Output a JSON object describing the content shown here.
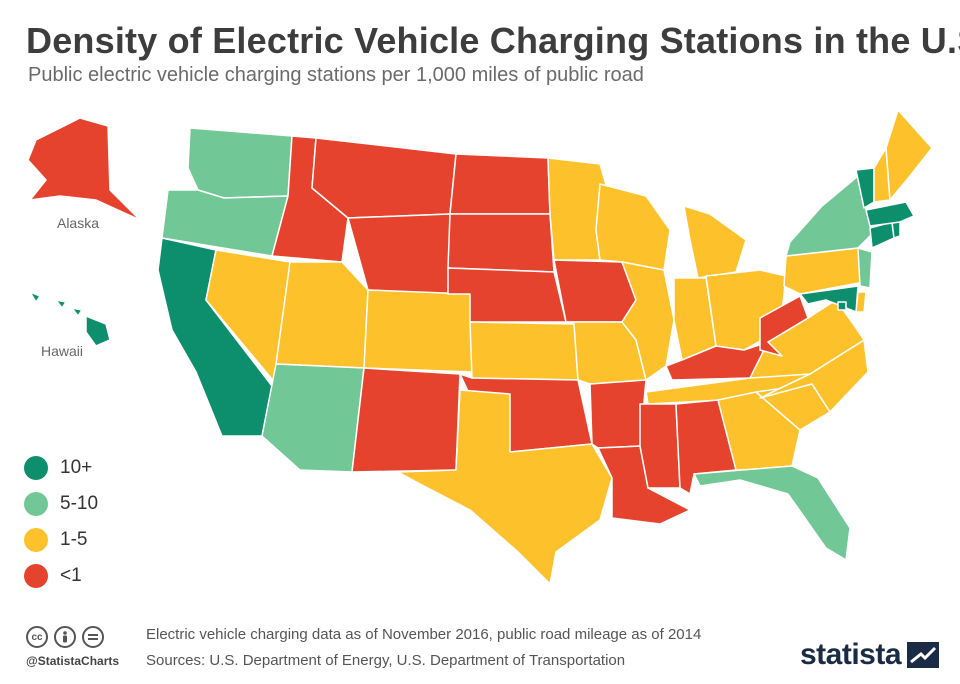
{
  "title": "Density of Electric Vehicle Charging Stations in the U.S.",
  "subtitle": "Public electric vehicle charging stations per 1,000 miles of public road",
  "labels": {
    "alaska": "Alaska",
    "hawaii": "Hawaii"
  },
  "legend": [
    {
      "key": "high",
      "label": "10+",
      "color": "#0d8f6e"
    },
    {
      "key": "mid",
      "label": "5-10",
      "color": "#72c796"
    },
    {
      "key": "low",
      "label": "1-5",
      "color": "#fdc12b"
    },
    {
      "key": "none",
      "label": "<1",
      "color": "#e5432e"
    }
  ],
  "states": {
    "WA": "mid",
    "OR": "mid",
    "CA": "high",
    "NV": "low",
    "ID": "none",
    "MT": "none",
    "WY": "none",
    "UT": "low",
    "AZ": "mid",
    "CO": "low",
    "NM": "none",
    "ND": "none",
    "SD": "none",
    "NE": "none",
    "KS": "low",
    "OK": "none",
    "TX": "low",
    "MN": "low",
    "IA": "none",
    "MO": "low",
    "AR": "none",
    "LA": "none",
    "WI": "low",
    "IL": "low",
    "MI": "low",
    "IN": "low",
    "OH": "low",
    "KY": "none",
    "TN": "low",
    "MS": "none",
    "AL": "none",
    "GA": "low",
    "FL": "mid",
    "SC": "low",
    "NC": "low",
    "VA": "low",
    "WV": "none",
    "PA": "low",
    "NY": "mid",
    "NJ": "mid",
    "DE": "low",
    "MD": "high",
    "CT": "high",
    "RI": "high",
    "MA": "high",
    "VT": "high",
    "NH": "low",
    "ME": "low",
    "DC": "high",
    "AK": "none",
    "HI": "high"
  },
  "footer": {
    "handle": "@StatistaCharts",
    "note": "Electric vehicle charging data as of November 2016, public road mileage as of 2014",
    "sources": "Sources: U.S. Department of Energy, U.S. Department of Transportation",
    "brand": "statista",
    "icons": [
      "cc-icon",
      "by-icon",
      "nd-icon"
    ]
  }
}
